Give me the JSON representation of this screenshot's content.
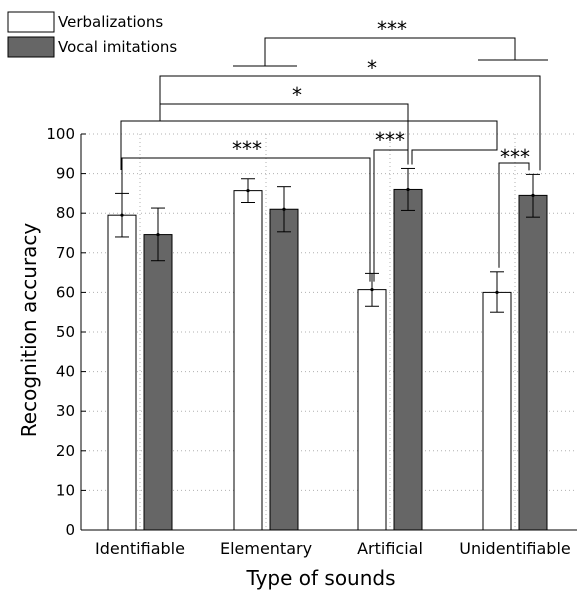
{
  "chart_data": {
    "type": "bar",
    "xlabel": "Type of sounds",
    "ylabel": "Recognition accuracy",
    "ylim": [
      0,
      100
    ],
    "yticks": [
      0,
      10,
      20,
      30,
      40,
      50,
      60,
      70,
      80,
      90,
      100
    ],
    "grid": true,
    "legend_position": "top-left",
    "categories": [
      "Identifiable",
      "Elementary",
      "Artificial",
      "Unidentifiable"
    ],
    "series": [
      {
        "name": "Verbalizations",
        "color": "#ffffff",
        "values": [
          79.5,
          85.7,
          60.7,
          60.0
        ],
        "error_low": [
          74.0,
          82.7,
          56.5,
          55.0
        ],
        "error_high": [
          85.0,
          88.7,
          64.8,
          65.2
        ]
      },
      {
        "name": "Vocal imitations",
        "color": "#666666",
        "values": [
          74.6,
          81.0,
          86.0,
          84.5
        ],
        "error_low": [
          68.0,
          75.3,
          80.7,
          79.0
        ],
        "error_high": [
          81.3,
          86.7,
          91.3,
          89.8
        ]
      }
    ],
    "significance": [
      {
        "label": "***",
        "from": "Identifiable Verbalizations",
        "to": "Artificial Verbalizations"
      },
      {
        "label": "***",
        "from": "Artificial Verbalizations",
        "to": "Artificial Vocal imitations"
      },
      {
        "label": "***",
        "from": "Unidentifiable Verbalizations",
        "to": "Unidentifiable Vocal imitations"
      },
      {
        "label": "*",
        "from": "Identifiable–Elementary",
        "to": "Artificial Vocal imitations"
      },
      {
        "label": "*",
        "from": "Identifiable–Elementary",
        "to": "Unidentifiable Vocal imitations"
      },
      {
        "label": "***",
        "from": "Identifiable–Elementary",
        "to": "Artificial–Unidentifiable"
      }
    ]
  }
}
